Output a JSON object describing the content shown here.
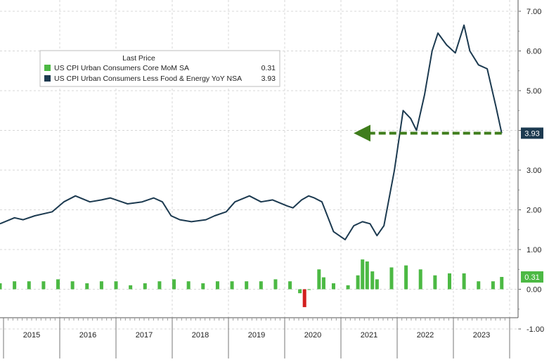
{
  "chart_data": {
    "type": "line",
    "x_years": [
      "2015",
      "2016",
      "2017",
      "2018",
      "2019",
      "2020",
      "2021",
      "2022",
      "2023"
    ],
    "y_ticks": [
      "7.00",
      "6.00",
      "5.00",
      "4.00",
      "3.00",
      "2.00",
      "1.00",
      "0.00",
      "-1.00"
    ],
    "ylim": [
      -1,
      7
    ],
    "grid": true,
    "legend": {
      "title": "Last Price",
      "position": "top-left",
      "entries": [
        {
          "name": "US CPI Urban Consumers Core MoM SA",
          "value": "0.31",
          "color": "#4cb944"
        },
        {
          "name": "US CPI Urban Consumers Less Food & Energy YoY NSA",
          "value": "3.93",
          "color": "#1c3a50"
        }
      ]
    },
    "last_value_tags": [
      {
        "text": "3.93",
        "value": 3.93,
        "color": "#1c3a50"
      },
      {
        "text": "0.31",
        "value": 0.31,
        "color": "#4cb944"
      }
    ],
    "annotation": {
      "type": "dashed-arrow",
      "value": 3.93,
      "x_from": 2023.65,
      "x_to": 2021.33,
      "color": "#3f7d1c"
    },
    "series": [
      {
        "name": "US CPI Urban Consumers Less Food & Energy YoY NSA",
        "style": "line",
        "color": "#1c3a50",
        "x": [
          2015.0,
          2015.25,
          2015.4,
          2015.6,
          2015.9,
          2016.1,
          2016.3,
          2016.55,
          2016.75,
          2016.9,
          2017.1,
          2017.2,
          2017.45,
          2017.65,
          2017.8,
          2017.95,
          2018.1,
          2018.3,
          2018.55,
          2018.7,
          2018.9,
          2019.05,
          2019.3,
          2019.5,
          2019.7,
          2019.95,
          2020.05,
          2020.2,
          2020.32,
          2020.42,
          2020.55,
          2020.75,
          2020.95,
          2021.1,
          2021.25,
          2021.38,
          2021.5,
          2021.62,
          2021.8,
          2021.95,
          2022.08,
          2022.18,
          2022.32,
          2022.45,
          2022.55,
          2022.7,
          2022.85,
          2023.0,
          2023.1,
          2023.25,
          2023.4,
          2023.55,
          2023.65
        ],
        "y": [
          1.65,
          1.8,
          1.75,
          1.85,
          1.95,
          2.2,
          2.35,
          2.2,
          2.25,
          2.3,
          2.2,
          2.15,
          2.2,
          2.3,
          2.2,
          1.85,
          1.75,
          1.7,
          1.75,
          1.85,
          1.95,
          2.2,
          2.35,
          2.2,
          2.25,
          2.1,
          2.05,
          2.25,
          2.35,
          2.3,
          2.2,
          1.45,
          1.25,
          1.6,
          1.7,
          1.65,
          1.35,
          1.6,
          3.0,
          4.5,
          4.3,
          4.0,
          4.9,
          6.0,
          6.45,
          6.15,
          5.95,
          6.65,
          6.0,
          5.65,
          5.55,
          4.6,
          3.93
        ]
      },
      {
        "name": "US CPI Urban Consumers Core MoM SA",
        "style": "bar",
        "color": "#4cb944",
        "x": [
          2015.0,
          2015.25,
          2015.5,
          2015.75,
          2016.0,
          2016.25,
          2016.5,
          2016.75,
          2017.0,
          2017.25,
          2017.5,
          2017.75,
          2018.0,
          2018.25,
          2018.5,
          2018.75,
          2019.0,
          2019.25,
          2019.5,
          2019.75,
          2020.0,
          2020.17,
          2020.25,
          2020.33,
          2020.5,
          2020.58,
          2020.75,
          2021.0,
          2021.17,
          2021.25,
          2021.33,
          2021.42,
          2021.5,
          2021.75,
          2022.0,
          2022.25,
          2022.5,
          2022.75,
          2023.0,
          2023.25,
          2023.5,
          2023.65
        ],
        "y": [
          0.15,
          0.2,
          0.2,
          0.2,
          0.25,
          0.2,
          0.15,
          0.2,
          0.2,
          0.1,
          0.15,
          0.2,
          0.25,
          0.2,
          0.15,
          0.2,
          0.2,
          0.2,
          0.2,
          0.25,
          0.2,
          -0.1,
          -0.45,
          0.0,
          0.5,
          0.3,
          0.15,
          0.1,
          0.35,
          0.75,
          0.7,
          0.45,
          0.25,
          0.55,
          0.6,
          0.5,
          0.35,
          0.4,
          0.4,
          0.2,
          0.2,
          0.31
        ]
      }
    ]
  }
}
